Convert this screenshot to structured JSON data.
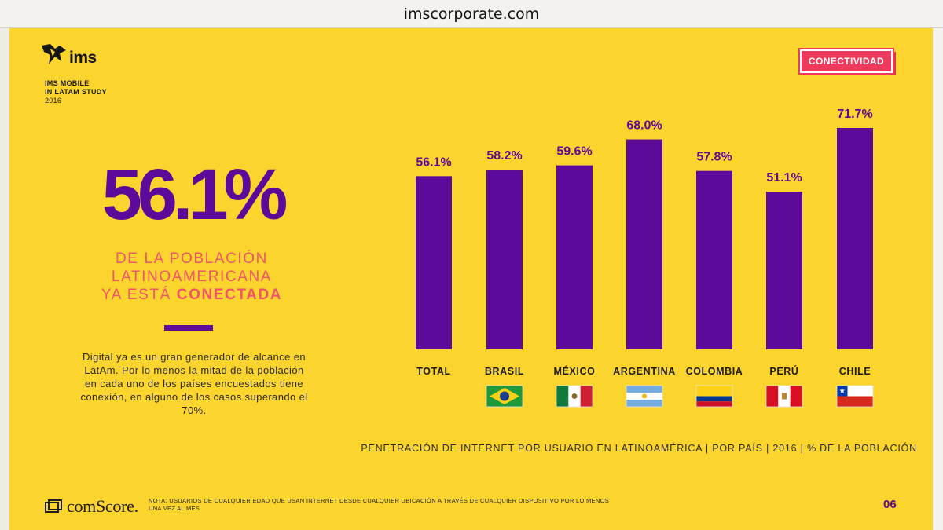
{
  "browser": {
    "url": "imscorporate.com"
  },
  "header": {
    "logo_text": "ims",
    "study_line1": "IMS MOBILE",
    "study_line2": "IN LATAM STUDY",
    "study_year": "2016",
    "badge": "CONECTIVIDAD"
  },
  "left_panel": {
    "big_stat": "56.1%",
    "sub_line1": "DE LA POBLACIÓN",
    "sub_line2": "LATINOAMERICANA",
    "sub_line3_prefix": "YA ESTÁ ",
    "sub_line3_bold": "CONECTADA",
    "description": "Digital ya es un gran generador de alcance en LatAm. Por lo menos la mitad de la población en cada uno de los países encuestados tiene conexión, en alguno de los casos superando el 70%."
  },
  "chart_data": {
    "type": "bar",
    "categories": [
      "TOTAL",
      "BRASIL",
      "MÉXICO",
      "ARGENTINA",
      "COLOMBIA",
      "PERÚ",
      "CHILE"
    ],
    "values": [
      56.1,
      58.2,
      59.6,
      68.0,
      57.8,
      51.1,
      71.7
    ],
    "value_labels": [
      "56.1%",
      "58.2%",
      "59.6%",
      "68.0%",
      "57.8%",
      "51.1%",
      "71.7%"
    ],
    "flags": [
      null,
      "brazil-flag",
      "mexico-flag",
      "argentina-flag",
      "colombia-flag",
      "peru-flag",
      "chile-flag"
    ],
    "bar_color": "#5b0a99",
    "label_color": "#5b0a99",
    "ylim": [
      0,
      80
    ],
    "grid": false,
    "caption": "PENETRACIÓN DE INTERNET POR USUARIO EN LATINOAMÉRICA | POR PAÍS | 2016 | % DE LA POBLACIÓN"
  },
  "footer": {
    "comscore_text": "comScore.",
    "note": "NOTA: USUARIOS DE CUALQUIER EDAD QUE USAN INTERNET DESDE CUALQUIER UBICACIÓN A TRAVÉS DE CUALQUIER DISPOSITIVO POR LO MENOS UNA VEZ AL MES.",
    "page": "06"
  },
  "colors": {
    "background": "#fcd42e",
    "accent_purple": "#5b0a99",
    "accent_pink": "#f0536b",
    "badge": "#ef3a5d"
  }
}
